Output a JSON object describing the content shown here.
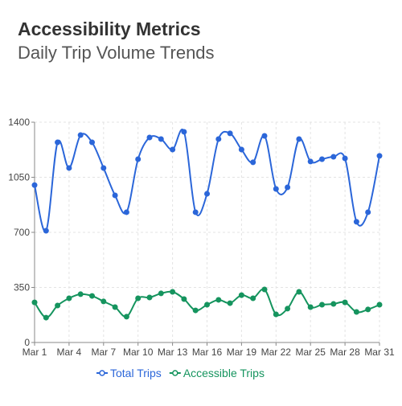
{
  "chart_data": {
    "type": "line",
    "title": "Accessibility Metrics",
    "subtitle": "Daily Trip Volume Trends",
    "categories": [
      "Mar 1",
      null,
      null,
      "Mar 4",
      null,
      null,
      "Mar 7",
      null,
      null,
      "Mar 10",
      null,
      null,
      "Mar 13",
      null,
      null,
      "Mar 16",
      null,
      null,
      "Mar 19",
      null,
      null,
      "Mar 22",
      null,
      null,
      "Mar 25",
      null,
      null,
      "Mar 28",
      null,
      null,
      "Mar 31"
    ],
    "series": [
      {
        "name": "Total Trips",
        "color": "#2b66d9",
        "values": [
          1000,
          710,
          1272,
          1109,
          1318,
          1272,
          1109,
          935,
          828,
          1165,
          1303,
          1293,
          1226,
          1339,
          828,
          945,
          1293,
          1329,
          1226,
          1145,
          1313,
          976,
          986,
          1293,
          1150,
          1165,
          1180,
          1170,
          767,
          828,
          1186
        ]
      },
      {
        "name": "Accessible Trips",
        "color": "#15945e",
        "values": [
          255,
          158,
          235,
          281,
          307,
          296,
          261,
          225,
          164,
          281,
          286,
          312,
          322,
          276,
          204,
          240,
          271,
          250,
          301,
          281,
          337,
          179,
          215,
          322,
          225,
          240,
          245,
          255,
          194,
          210,
          240
        ]
      }
    ],
    "ylim": [
      0,
      1400
    ],
    "yticks": [
      0,
      350,
      700,
      1050,
      1400
    ],
    "grid": true,
    "legend": "bottom"
  }
}
